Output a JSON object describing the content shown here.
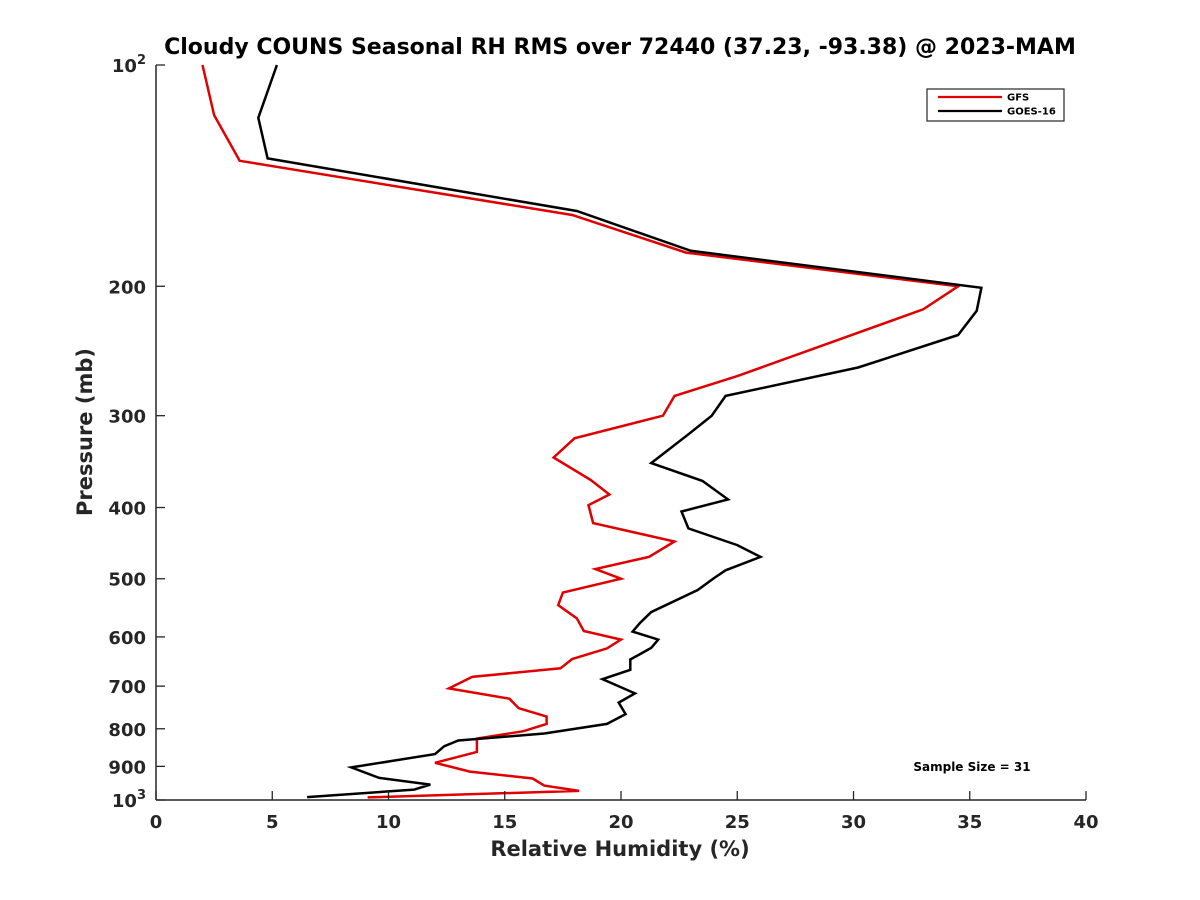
{
  "chart_data": {
    "type": "line",
    "title": "Cloudy COUNS Seasonal RH RMS over 72440 (37.23, -93.38) @ 2023-MAM",
    "xlabel": "Relative Humidity (%)",
    "ylabel": "Pressure (mb)",
    "xlim": [
      0,
      40
    ],
    "ylim": [
      100,
      1000
    ],
    "yscale": "log",
    "y_reversed": true,
    "xticks": [
      {
        "value": 0,
        "label": "0"
      },
      {
        "value": 5,
        "label": "5"
      },
      {
        "value": 10,
        "label": "10"
      },
      {
        "value": 15,
        "label": "15"
      },
      {
        "value": 20,
        "label": "20"
      },
      {
        "value": 25,
        "label": "25"
      },
      {
        "value": 30,
        "label": "30"
      },
      {
        "value": 35,
        "label": "35"
      },
      {
        "value": 40,
        "label": "40"
      }
    ],
    "yticks": [
      {
        "value": 100,
        "base": "10",
        "exp": "2"
      },
      {
        "value": 200,
        "base": "200",
        "exp": ""
      },
      {
        "value": 300,
        "base": "300",
        "exp": ""
      },
      {
        "value": 400,
        "base": "400",
        "exp": ""
      },
      {
        "value": 500,
        "base": "500",
        "exp": ""
      },
      {
        "value": 600,
        "base": "600",
        "exp": ""
      },
      {
        "value": 700,
        "base": "700",
        "exp": ""
      },
      {
        "value": 800,
        "base": "800",
        "exp": ""
      },
      {
        "value": 900,
        "base": "900",
        "exp": ""
      },
      {
        "value": 1000,
        "base": "10",
        "exp": "3"
      }
    ],
    "legend_position": "top-right",
    "annotation": "Sample Size = 31",
    "series": [
      {
        "name": "GFS",
        "color": "#e00000",
        "points": [
          [
            2.0,
            100
          ],
          [
            2.5,
            117
          ],
          [
            3.6,
            135
          ],
          [
            17.9,
            160
          ],
          [
            22.8,
            180
          ],
          [
            34.5,
            200
          ],
          [
            33.0,
            215
          ],
          [
            25.0,
            265
          ],
          [
            22.3,
            282
          ],
          [
            21.8,
            300
          ],
          [
            18.0,
            322
          ],
          [
            17.1,
            342
          ],
          [
            18.7,
            367
          ],
          [
            19.5,
            384
          ],
          [
            18.6,
            397
          ],
          [
            18.8,
            420
          ],
          [
            22.3,
            445
          ],
          [
            21.2,
            467
          ],
          [
            18.9,
            485
          ],
          [
            20.0,
            500
          ],
          [
            17.5,
            522
          ],
          [
            17.3,
            543
          ],
          [
            18.1,
            566
          ],
          [
            18.4,
            589
          ],
          [
            20.0,
            605
          ],
          [
            19.4,
            622
          ],
          [
            17.9,
            643
          ],
          [
            17.4,
            662
          ],
          [
            13.6,
            680
          ],
          [
            12.6,
            705
          ],
          [
            15.2,
            728
          ],
          [
            15.6,
            750
          ],
          [
            16.8,
            770
          ],
          [
            16.8,
            788
          ],
          [
            15.8,
            806
          ],
          [
            13.8,
            825
          ],
          [
            13.8,
            860
          ],
          [
            12.0,
            890
          ],
          [
            13.5,
            915
          ],
          [
            16.2,
            935
          ],
          [
            16.7,
            956
          ],
          [
            18.2,
            972
          ],
          [
            9.1,
            992
          ]
        ]
      },
      {
        "name": "GOES-16",
        "color": "#000000",
        "points": [
          [
            5.2,
            100
          ],
          [
            4.4,
            118
          ],
          [
            4.8,
            134
          ],
          [
            18.1,
            158
          ],
          [
            23.0,
            179
          ],
          [
            35.5,
            201
          ],
          [
            35.3,
            216
          ],
          [
            34.5,
            233
          ],
          [
            30.2,
            258
          ],
          [
            24.5,
            282
          ],
          [
            23.9,
            300
          ],
          [
            22.9,
            318
          ],
          [
            21.3,
            348
          ],
          [
            23.5,
            368
          ],
          [
            24.6,
            390
          ],
          [
            22.6,
            405
          ],
          [
            22.9,
            427
          ],
          [
            25.0,
            450
          ],
          [
            26.0,
            467
          ],
          [
            24.5,
            487
          ],
          [
            24.0,
            499
          ],
          [
            23.3,
            518
          ],
          [
            21.3,
            555
          ],
          [
            20.8,
            575
          ],
          [
            20.5,
            590
          ],
          [
            21.6,
            605
          ],
          [
            21.3,
            621
          ],
          [
            20.4,
            644
          ],
          [
            20.4,
            665
          ],
          [
            19.2,
            685
          ],
          [
            20.6,
            716
          ],
          [
            19.9,
            737
          ],
          [
            20.2,
            764
          ],
          [
            19.4,
            788
          ],
          [
            16.7,
            812
          ],
          [
            13.0,
            830
          ],
          [
            12.4,
            845
          ],
          [
            12.0,
            866
          ],
          [
            8.4,
            903
          ],
          [
            9.6,
            933
          ],
          [
            11.8,
            953
          ],
          [
            11.1,
            968
          ],
          [
            6.5,
            991
          ]
        ]
      }
    ]
  }
}
